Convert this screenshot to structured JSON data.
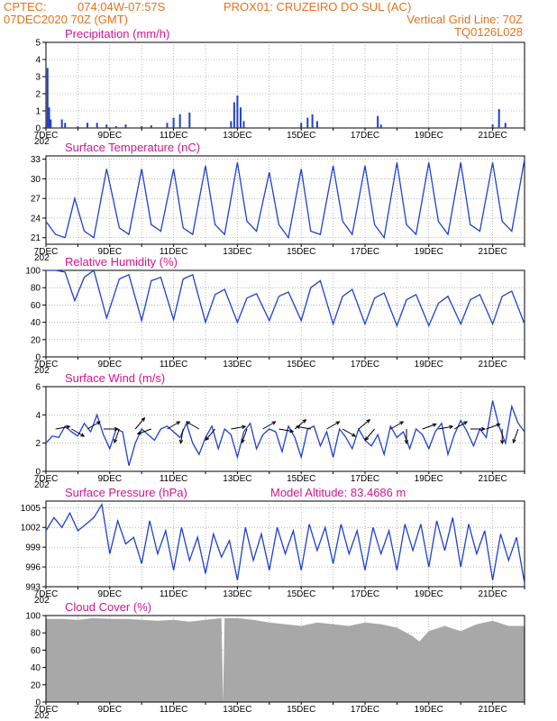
{
  "header": {
    "line1_left": "CPTEC:",
    "line1_coords": "074:04W-07:57S",
    "line1_station": "PROX01: CRUZEIRO DO SUL (AC)",
    "line2_left": "07DEC2020 70Z (GMT)",
    "line2_right": "Vertical Grid Line: 70Z",
    "line3_right": "TQ0126L028"
  },
  "colors": {
    "header": "#e8701a",
    "title": "#d4148c",
    "line": "#2040d0",
    "cloud": "#a8a8a8",
    "grid": "#888888"
  },
  "x_labels": [
    "7DEC",
    "9DEC",
    "11DEC",
    "13DEC",
    "15DEC",
    "17DEC",
    "19DEC",
    "21DEC"
  ],
  "year_label": "202",
  "chart_data": [
    {
      "id": "precip",
      "type": "bar",
      "title": "Precipitation (mm/h)",
      "x_range_days": [
        7,
        22
      ],
      "ylim": [
        0,
        5
      ],
      "yticks": [
        0,
        1,
        2,
        3,
        4,
        5
      ],
      "x": [
        7.05,
        7.1,
        7.15,
        7.5,
        7.6,
        8.0,
        8.3,
        8.6,
        8.9,
        9.2,
        9.5,
        10.0,
        10.3,
        10.8,
        11.0,
        11.2,
        11.5,
        12.8,
        12.9,
        13.0,
        13.1,
        13.2,
        15.0,
        15.2,
        15.35,
        15.5,
        17.4,
        17.5,
        21.0,
        21.2,
        21.4
      ],
      "values": [
        3.5,
        1.2,
        0.5,
        0.5,
        0.3,
        0.1,
        0.3,
        0.3,
        0.2,
        0.1,
        0.2,
        0.1,
        0.15,
        0.3,
        0.6,
        0.8,
        0.9,
        0.4,
        1.5,
        1.9,
        1.2,
        0.4,
        0.3,
        0.6,
        0.8,
        0.4,
        0.7,
        0.2,
        0.2,
        1.1,
        0.3
      ]
    },
    {
      "id": "temp",
      "type": "line",
      "title": "Surface Temperature (nC)",
      "x_range_days": [
        7,
        22
      ],
      "ylim": [
        20,
        33.5
      ],
      "yticks": [
        21,
        24,
        27,
        30,
        33
      ],
      "x": [
        7.0,
        7.3,
        7.6,
        7.9,
        8.2,
        8.5,
        8.9,
        9.3,
        9.6,
        10.0,
        10.3,
        10.6,
        11.0,
        11.3,
        11.6,
        12.0,
        12.3,
        12.6,
        13.0,
        13.3,
        13.6,
        14.0,
        14.3,
        14.6,
        15.0,
        15.3,
        15.6,
        16.0,
        16.3,
        16.6,
        17.0,
        17.3,
        17.6,
        18.0,
        18.3,
        18.6,
        19.0,
        19.3,
        19.6,
        20.0,
        20.3,
        20.6,
        21.0,
        21.3,
        21.6,
        22.0
      ],
      "values": [
        23.5,
        21.5,
        21.0,
        27.0,
        22.0,
        21.0,
        31.5,
        22.5,
        21.5,
        31.5,
        23.0,
        22.0,
        31.5,
        22.5,
        21.5,
        32.0,
        23.0,
        21.5,
        32.5,
        23.5,
        22.0,
        31.0,
        23.0,
        21.0,
        31.5,
        22.0,
        21.5,
        32.0,
        23.5,
        21.5,
        32.0,
        23.0,
        21.0,
        32.5,
        23.0,
        21.5,
        32.5,
        23.5,
        21.5,
        32.5,
        23.0,
        22.0,
        32.5,
        23.5,
        22.0,
        33.0
      ]
    },
    {
      "id": "rh",
      "type": "line",
      "title": "Relative Humidity (%)",
      "x_range_days": [
        7,
        22
      ],
      "ylim": [
        0,
        100
      ],
      "yticks": [
        0,
        20,
        40,
        60,
        80,
        100
      ],
      "x": [
        7.0,
        7.3,
        7.6,
        7.9,
        8.2,
        8.5,
        8.9,
        9.3,
        9.6,
        10.0,
        10.3,
        10.6,
        11.0,
        11.3,
        11.6,
        12.0,
        12.3,
        12.6,
        13.0,
        13.3,
        13.6,
        14.0,
        14.3,
        14.6,
        15.0,
        15.3,
        15.6,
        16.0,
        16.3,
        16.6,
        17.0,
        17.3,
        17.6,
        18.0,
        18.3,
        18.6,
        19.0,
        19.3,
        19.6,
        20.0,
        20.3,
        20.6,
        21.0,
        21.3,
        21.6,
        22.0
      ],
      "values": [
        100,
        100,
        98,
        65,
        92,
        100,
        45,
        90,
        95,
        42,
        88,
        92,
        43,
        90,
        95,
        40,
        72,
        78,
        40,
        68,
        73,
        42,
        70,
        75,
        42,
        80,
        88,
        38,
        70,
        78,
        38,
        68,
        74,
        36,
        66,
        72,
        36,
        62,
        70,
        38,
        66,
        72,
        38,
        70,
        76,
        38
      ]
    },
    {
      "id": "wind",
      "type": "line",
      "title": "Surface Wind (m/s)",
      "x_range_days": [
        7,
        22
      ],
      "ylim": [
        0,
        6
      ],
      "yticks": [
        0,
        2,
        4,
        6
      ],
      "x": [
        7.0,
        7.2,
        7.4,
        7.6,
        7.8,
        8.0,
        8.2,
        8.4,
        8.6,
        8.8,
        9.0,
        9.2,
        9.4,
        9.6,
        9.8,
        10.0,
        10.2,
        10.4,
        10.6,
        10.8,
        11.0,
        11.2,
        11.4,
        11.6,
        11.8,
        12.0,
        12.2,
        12.4,
        12.6,
        12.8,
        13.0,
        13.2,
        13.4,
        13.6,
        13.8,
        14.0,
        14.2,
        14.4,
        14.6,
        14.8,
        15.0,
        15.2,
        15.4,
        15.6,
        15.8,
        16.0,
        16.2,
        16.4,
        16.6,
        16.8,
        17.0,
        17.2,
        17.4,
        17.6,
        17.8,
        18.0,
        18.2,
        18.4,
        18.6,
        18.8,
        19.0,
        19.2,
        19.4,
        19.6,
        19.8,
        20.0,
        20.2,
        20.4,
        20.6,
        20.8,
        21.0,
        21.2,
        21.4,
        21.6,
        21.8,
        22.0
      ],
      "values": [
        2.0,
        2.5,
        2.4,
        3.2,
        2.8,
        2.5,
        3.4,
        2.8,
        4.0,
        2.6,
        1.6,
        3.0,
        2.8,
        0.4,
        2.0,
        3.0,
        2.6,
        2.2,
        3.0,
        3.2,
        2.8,
        2.4,
        3.4,
        2.0,
        1.2,
        2.4,
        3.2,
        1.6,
        3.0,
        2.6,
        1.0,
        2.8,
        3.4,
        1.6,
        2.6,
        3.0,
        2.8,
        1.4,
        3.2,
        2.4,
        1.0,
        3.0,
        3.2,
        1.8,
        2.8,
        1.0,
        3.0,
        2.4,
        1.6,
        3.0,
        2.2,
        1.8,
        2.6,
        1.2,
        3.2,
        2.4,
        2.8,
        1.6,
        3.0,
        2.6,
        1.6,
        2.8,
        3.4,
        1.2,
        2.6,
        3.6,
        2.8,
        1.8,
        3.0,
        2.4,
        5.0,
        3.2,
        2.0,
        4.6,
        3.4,
        2.8
      ],
      "barb_x": [
        7.3,
        7.8,
        8.3,
        8.8,
        9.3,
        9.8,
        10.3,
        10.8,
        11.3,
        11.8,
        12.3,
        12.8,
        13.3,
        13.8,
        14.3,
        14.8,
        15.3,
        15.8,
        16.3,
        16.8,
        17.3,
        17.8,
        18.3,
        18.8,
        19.3,
        19.8,
        20.3,
        20.8,
        21.3,
        21.8
      ],
      "barb_dir_deg": [
        80,
        120,
        60,
        90,
        200,
        40,
        250,
        60,
        190,
        300,
        220,
        80,
        200,
        60,
        100,
        50,
        280,
        60,
        120,
        50,
        220,
        60,
        180,
        70,
        80,
        60,
        90,
        70,
        180,
        200
      ]
    },
    {
      "id": "pres",
      "type": "line",
      "title": "Surface Pressure (hPa)",
      "subtitle": "Model Altitude: 83.4686 m",
      "x_range_days": [
        7,
        22
      ],
      "ylim": [
        993,
        1006
      ],
      "yticks": [
        993,
        996,
        999,
        1002,
        1005
      ],
      "x": [
        7.0,
        7.25,
        7.5,
        7.75,
        8.0,
        8.25,
        8.5,
        8.75,
        9.0,
        9.25,
        9.5,
        9.75,
        10.0,
        10.25,
        10.5,
        10.75,
        11.0,
        11.25,
        11.5,
        11.75,
        12.0,
        12.25,
        12.5,
        12.75,
        13.0,
        13.25,
        13.5,
        13.75,
        14.0,
        14.25,
        14.5,
        14.75,
        15.0,
        15.25,
        15.5,
        15.75,
        16.0,
        16.25,
        16.5,
        16.75,
        17.0,
        17.25,
        17.5,
        17.75,
        18.0,
        18.25,
        18.5,
        18.75,
        19.0,
        19.25,
        19.5,
        19.75,
        20.0,
        20.25,
        20.5,
        20.75,
        21.0,
        21.25,
        21.5,
        21.75,
        22.0
      ],
      "values": [
        1001.5,
        1003.5,
        1002.0,
        1004.2,
        1001.5,
        1002.5,
        1003.5,
        1005.5,
        998.0,
        1003.0,
        999.5,
        1000.5,
        996.5,
        1003.0,
        998.0,
        1001.5,
        995.5,
        1002.0,
        997.0,
        1000.5,
        995.0,
        1001.0,
        997.5,
        1000.0,
        994.0,
        1002.0,
        997.0,
        1001.0,
        995.5,
        1002.0,
        998.0,
        1001.5,
        995.5,
        1002.5,
        998.5,
        1002.0,
        996.5,
        1002.5,
        998.0,
        1001.5,
        995.5,
        1002.0,
        998.0,
        1001.5,
        995.5,
        1002.5,
        998.5,
        1002.5,
        996.0,
        1003.0,
        998.5,
        1003.5,
        996.0,
        1002.5,
        998.0,
        1001.5,
        994.0,
        1001.0,
        997.0,
        1000.5,
        993.5
      ]
    },
    {
      "id": "cloud",
      "type": "area",
      "title": "Cloud Cover (%)",
      "x_range_days": [
        7,
        22
      ],
      "ylim": [
        0,
        100
      ],
      "yticks": [
        0,
        20,
        40,
        60,
        80,
        100
      ],
      "x": [
        7.0,
        7.5,
        8.0,
        8.5,
        9.0,
        9.5,
        10.0,
        10.5,
        11.0,
        11.5,
        12.0,
        12.5,
        12.55,
        12.6,
        13.0,
        13.5,
        14.0,
        14.5,
        15.0,
        15.5,
        16.0,
        16.5,
        17.0,
        17.5,
        18.0,
        18.5,
        18.7,
        19.0,
        19.5,
        20.0,
        20.5,
        21.0,
        21.5,
        22.0
      ],
      "values": [
        96,
        96,
        95,
        97,
        96,
        96,
        95,
        94,
        95,
        93,
        95,
        97,
        0,
        97,
        97,
        95,
        92,
        90,
        88,
        92,
        90,
        88,
        92,
        90,
        86,
        76,
        70,
        82,
        88,
        82,
        90,
        94,
        88,
        88
      ]
    }
  ]
}
